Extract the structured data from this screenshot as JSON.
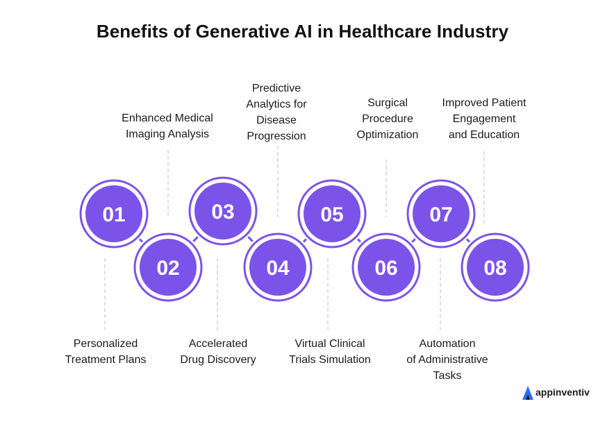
{
  "title": "Benefits of Generative AI in Healthcare Industry",
  "colors": {
    "circle_fill": "#7B53E8",
    "circle_ring": "#7B53E8",
    "connector": "#7B53E8",
    "leader_line": "#C9C2E8",
    "text": "#1a1a1a",
    "logo_blue": "#2F6BFF"
  },
  "steps": [
    {
      "number": "01",
      "label": "Personalized\nTreatment Plans"
    },
    {
      "number": "02",
      "label": "Enhanced Medical\nImaging Analysis"
    },
    {
      "number": "03",
      "label": "Accelerated\nDrug Discovery"
    },
    {
      "number": "04",
      "label": "Predictive\nAnalytics for\nDisease\nProgression"
    },
    {
      "number": "05",
      "label": "Virtual Clinical\nTrials Simulation"
    },
    {
      "number": "06",
      "label": "Surgical\nProcedure\nOptimization"
    },
    {
      "number": "07",
      "label": "Automation\nof Administrative\nTasks"
    },
    {
      "number": "08",
      "label": "Improved Patient\nEngagement\nand Education"
    }
  ],
  "brand": {
    "name": "appinventiv",
    "icon": "appinventiv-logo-icon"
  }
}
